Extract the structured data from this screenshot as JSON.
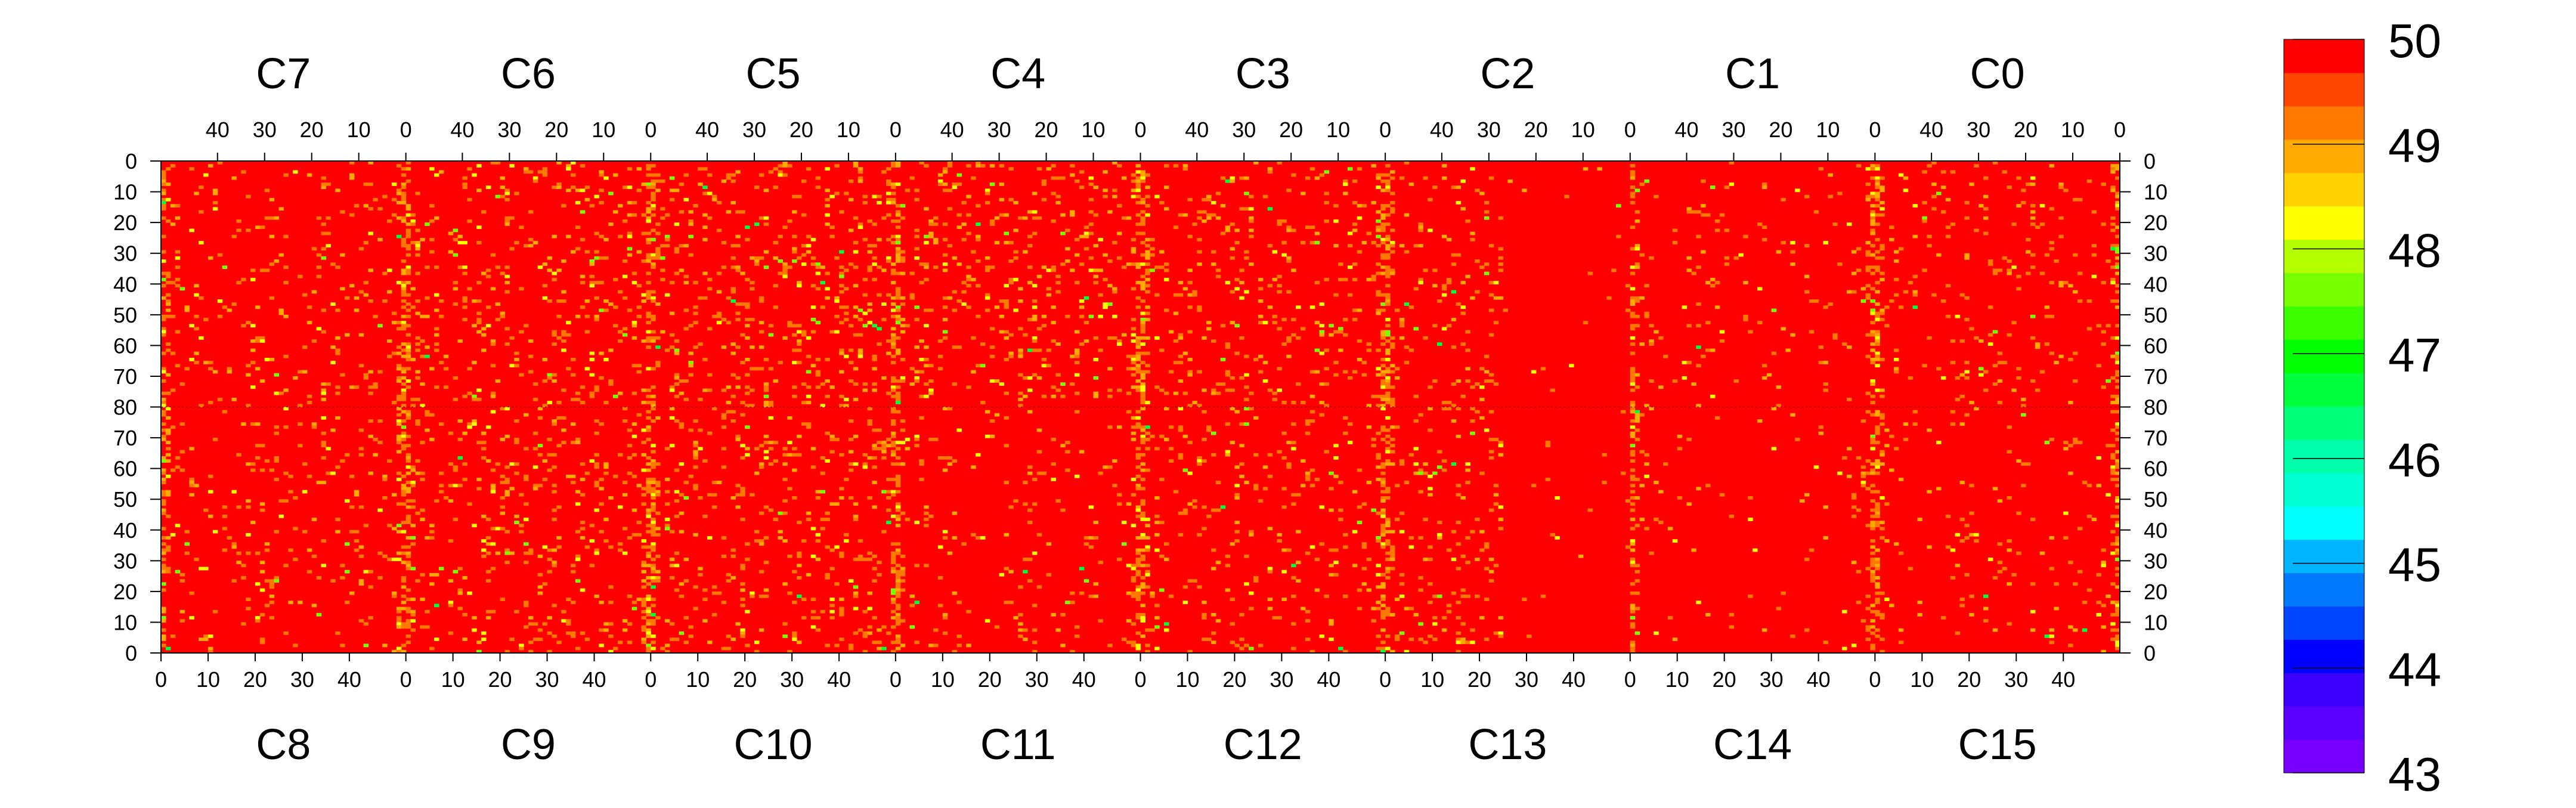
{
  "chart_data": {
    "type": "heatmap",
    "top_chip_labels": [
      "C7",
      "C6",
      "C5",
      "C4",
      "C3",
      "C2",
      "C1",
      "C0"
    ],
    "bottom_chip_labels": [
      "C8",
      "C9",
      "C10",
      "C11",
      "C12",
      "C13",
      "C14",
      "C15"
    ],
    "x_tick_labels_top": [
      "40",
      "30",
      "20",
      "10",
      "0"
    ],
    "x_tick_labels_bottom": [
      "0",
      "10",
      "20",
      "30",
      "40"
    ],
    "y_tick_labels_left": [
      "0",
      "10",
      "20",
      "30",
      "40",
      "50",
      "60",
      "70",
      "80",
      "70",
      "60",
      "50",
      "40",
      "30",
      "20",
      "10",
      "0"
    ],
    "y_tick_labels_right": [
      "0",
      "10",
      "20",
      "30",
      "40",
      "50",
      "60",
      "70",
      "80",
      "70",
      "60",
      "50",
      "40",
      "30",
      "20",
      "10",
      "0"
    ],
    "columns_per_chip": 52,
    "rows_per_half": 80,
    "zlim": [
      43,
      50
    ],
    "color_scale_labels": [
      "50",
      "49",
      "48",
      "47",
      "46",
      "45",
      "44",
      "43"
    ],
    "palette": [
      "#7800ff",
      "#5a00ff",
      "#3c00ff",
      "#0000ff",
      "#0046ff",
      "#0078ff",
      "#00b4ff",
      "#00ffff",
      "#00ffd2",
      "#00ffaa",
      "#00ff78",
      "#00ff3c",
      "#00ff00",
      "#3cff00",
      "#78ff00",
      "#b4ff00",
      "#ffff00",
      "#ffd200",
      "#ffaa00",
      "#ff7800",
      "#ff4600",
      "#ff0000"
    ],
    "distribution": "mostly 50 (red); scattered 49 (orange) and 48 (yellow); a few lower values concentrated at the columns nearest each chip boundary"
  }
}
